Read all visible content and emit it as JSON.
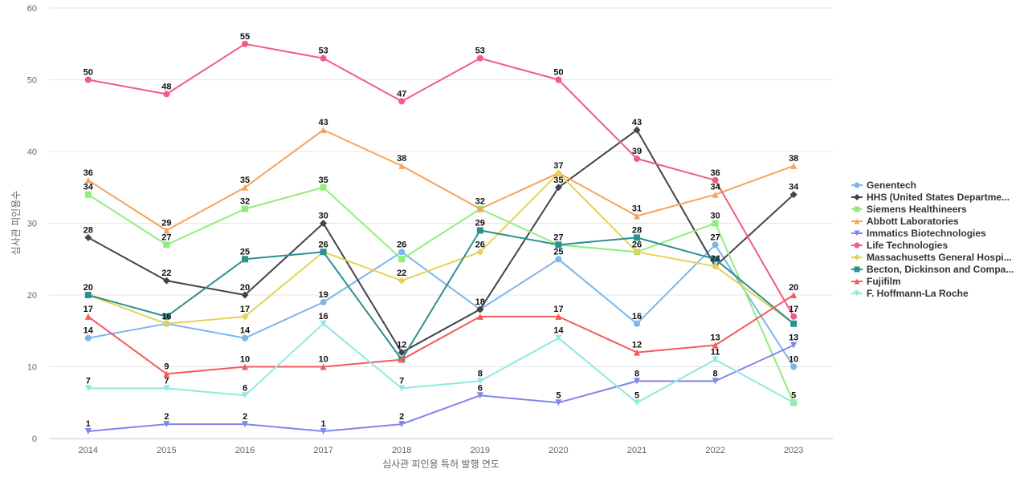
{
  "chart_data": {
    "type": "line",
    "xlabel": "심사관 피인용 특허 발행 연도",
    "ylabel": "심사관 피인용수",
    "ylim": [
      0,
      60
    ],
    "yticks": [
      0,
      10,
      20,
      30,
      40,
      50,
      60
    ],
    "grid": true,
    "legend_position": "right",
    "categories": [
      "2014",
      "2015",
      "2016",
      "2017",
      "2018",
      "2019",
      "2020",
      "2021",
      "2022",
      "2023"
    ],
    "series": [
      {
        "name": "Genentech",
        "color": "#7cb5ec",
        "marker": "circle",
        "values": [
          14,
          16,
          14,
          19,
          26,
          18,
          25,
          16,
          27,
          10
        ]
      },
      {
        "name": "HHS (United States Departme...",
        "color": "#434348",
        "marker": "diamond",
        "values": [
          28,
          22,
          20,
          30,
          12,
          18,
          35,
          43,
          24,
          34
        ]
      },
      {
        "name": "Siemens Healthineers",
        "color": "#90ed7d",
        "marker": "square",
        "values": [
          34,
          27,
          32,
          35,
          25,
          32,
          27,
          26,
          30,
          5
        ]
      },
      {
        "name": "Abbott Laboratories",
        "color": "#f7a35c",
        "marker": "triangle",
        "values": [
          36,
          29,
          35,
          43,
          38,
          32,
          37,
          31,
          34,
          38
        ]
      },
      {
        "name": "Immatics Biotechnologies",
        "color": "#8085e9",
        "marker": "triangle-down",
        "values": [
          1,
          2,
          2,
          1,
          2,
          6,
          5,
          8,
          8,
          13
        ]
      },
      {
        "name": "Life Technologies",
        "color": "#f15c80",
        "marker": "circle",
        "values": [
          50,
          48,
          55,
          53,
          47,
          53,
          50,
          39,
          36,
          17
        ]
      },
      {
        "name": "Massachusetts General Hospi...",
        "color": "#e4d354",
        "marker": "diamond",
        "values": [
          20,
          16,
          17,
          26,
          22,
          26,
          37,
          26,
          24,
          16
        ]
      },
      {
        "name": "Becton, Dickinson and Compa...",
        "color": "#2b908f",
        "marker": "square",
        "values": [
          20,
          17,
          25,
          26,
          11,
          29,
          27,
          28,
          25,
          16
        ]
      },
      {
        "name": "Fujifilm",
        "color": "#f45b5b",
        "marker": "triangle",
        "values": [
          17,
          9,
          10,
          10,
          11,
          17,
          17,
          12,
          13,
          20
        ]
      },
      {
        "name": "F. Hoffmann-La Roche",
        "color": "#91e8e1",
        "marker": "triangle-down",
        "values": [
          7,
          7,
          6,
          16,
          7,
          8,
          14,
          5,
          11,
          5
        ]
      }
    ],
    "data_labels": [
      {
        "x": "2014",
        "values": [
          14,
          28,
          34,
          36,
          1,
          50,
          20,
          17,
          7
        ]
      },
      {
        "x": "2015",
        "values": [
          16,
          22,
          27,
          29,
          2,
          48,
          9,
          7
        ]
      },
      {
        "x": "2016",
        "values": [
          14,
          20,
          32,
          35,
          2,
          55,
          17,
          25,
          10,
          6
        ]
      },
      {
        "x": "2017",
        "values": [
          19,
          30,
          35,
          43,
          1,
          53,
          26,
          10,
          16
        ]
      },
      {
        "x": "2018",
        "values": [
          26,
          12,
          38,
          2,
          47,
          22,
          7
        ]
      },
      {
        "x": "2019",
        "values": [
          18,
          32,
          6,
          53,
          26,
          29,
          8
        ]
      },
      {
        "x": "2020",
        "values": [
          25,
          35,
          37,
          5,
          50,
          27,
          17,
          14
        ]
      },
      {
        "x": "2021",
        "values": [
          16,
          43,
          26,
          31,
          8,
          39,
          28,
          12,
          5
        ]
      },
      {
        "x": "2022",
        "values": [
          27,
          24,
          30,
          34,
          8,
          36,
          13,
          11
        ]
      },
      {
        "x": "2023",
        "values": [
          10,
          34,
          5,
          38,
          13,
          17,
          20
        ]
      }
    ]
  }
}
